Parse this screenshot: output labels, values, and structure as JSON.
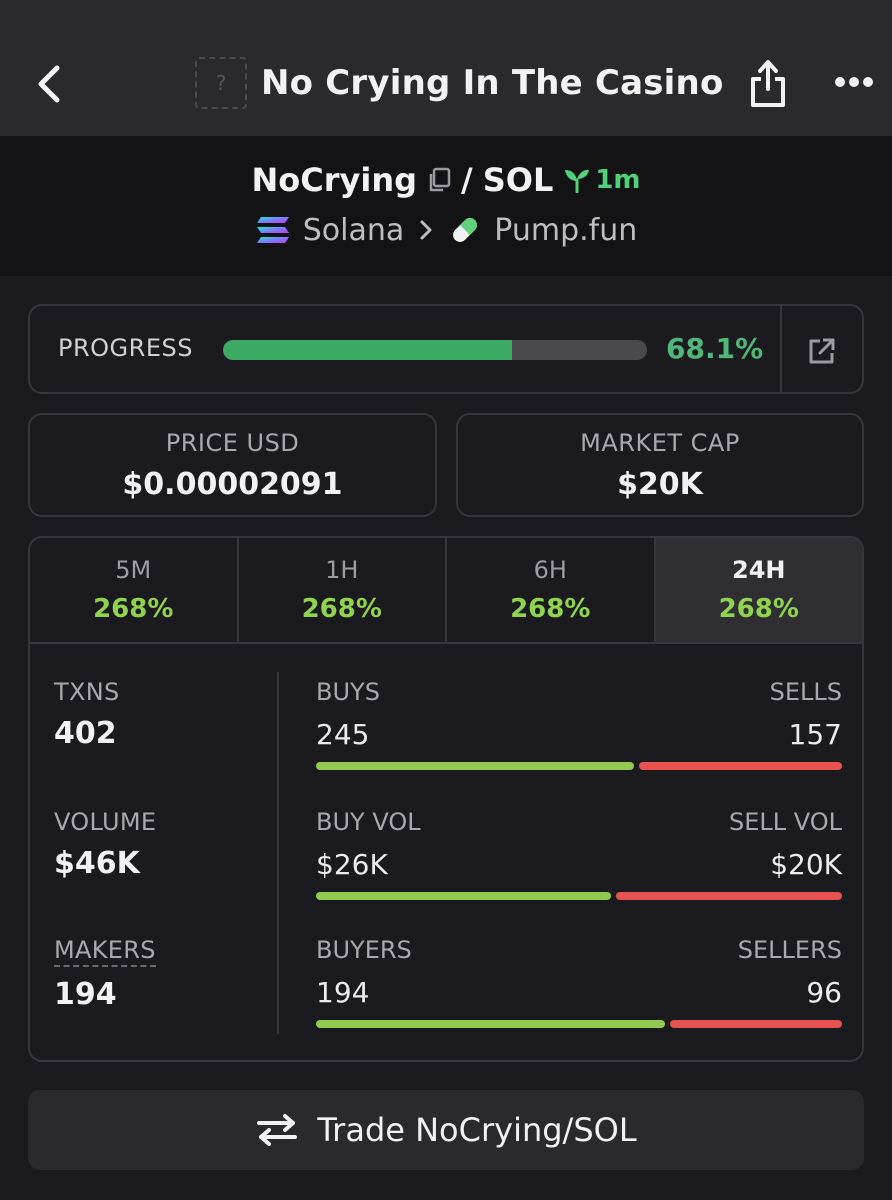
{
  "nav": {
    "title": "No Crying In The Casino",
    "thumb_placeholder": "?",
    "back_icon": "chevron-left-icon",
    "share_icon": "share-icon",
    "more_icon": "more-horizontal-icon"
  },
  "pair": {
    "base": "NoCrying",
    "separator": "/",
    "quote": "SOL",
    "age": "1m",
    "chain": "Solana",
    "dex": "Pump.fun"
  },
  "progress": {
    "label": "PROGRESS",
    "value_text": "68.1%",
    "fraction": 0.681,
    "fill_color": "#3daa63"
  },
  "stats": {
    "price_label": "PRICE USD",
    "price_value": "$0.00002091",
    "mcap_label": "MARKET CAP",
    "mcap_value": "$20K"
  },
  "timeframes": [
    {
      "label": "5M",
      "change": "268%"
    },
    {
      "label": "1H",
      "change": "268%"
    },
    {
      "label": "6H",
      "change": "268%"
    },
    {
      "label": "24H",
      "change": "268%"
    }
  ],
  "active_timeframe": "24H",
  "metrics": {
    "txns_label": "TXNS",
    "txns_value": "402",
    "volume_label": "VOLUME",
    "volume_value": "$46K",
    "makers_label": "MAKERS",
    "makers_value": "194"
  },
  "splits": [
    {
      "left_label": "BUYS",
      "right_label": "SELLS",
      "left_value": "245",
      "right_value": "157",
      "buy_fraction": 0.609
    },
    {
      "left_label": "BUY VOL",
      "right_label": "SELL VOL",
      "left_value": "$26K",
      "right_value": "$20K",
      "buy_fraction": 0.565
    },
    {
      "left_label": "BUYERS",
      "right_label": "SELLERS",
      "left_value": "194",
      "right_value": "96",
      "buy_fraction": 0.669
    }
  ],
  "colors": {
    "buy": "#93c94f",
    "sell": "#e8534f",
    "positive": "#8fd34f",
    "progress_text": "#4fb878"
  },
  "trade_button": {
    "label": "Trade NoCrying/SOL",
    "icon": "swap-arrows-icon"
  }
}
